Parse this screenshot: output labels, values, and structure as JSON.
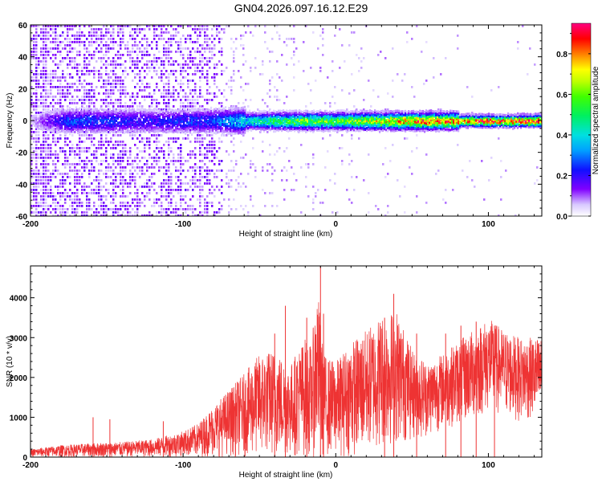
{
  "title": "GN04.2026.097.16.12.E29",
  "colors": {
    "snr_line": "#ee3333",
    "noise_light": "#d4bff5",
    "noise_dark": "#6a10e8"
  },
  "chart_data": [
    {
      "type": "heatmap",
      "name": "spectrogram",
      "xlabel": "Height of straight line (km)",
      "ylabel": "Frequency (Hz)",
      "xlim": [
        -200,
        135
      ],
      "ylim": [
        -60,
        60
      ],
      "x_ticks": [
        -200,
        -100,
        0,
        100
      ],
      "y_ticks": [
        60,
        40,
        20,
        0,
        -20,
        -40,
        -60
      ],
      "x_tick_labels": [
        "-200",
        "-100",
        "0",
        "100"
      ],
      "y_tick_labels": [
        "60",
        "40",
        "20",
        "0",
        "-20",
        "-40",
        "-60"
      ],
      "colorbar": {
        "label": "Normalized spectral amplitude",
        "range": [
          0,
          0.95
        ],
        "ticks": [
          0.0,
          0.2,
          0.4,
          0.6,
          0.8
        ],
        "tick_labels": [
          "0.0",
          "0.2",
          "0.4",
          "0.6",
          "0.8"
        ]
      },
      "signal_band": {
        "center_hz": 0,
        "description": "narrow band near 0 Hz strengthening with height",
        "amplitude_profile": [
          [
            -200,
            0.05
          ],
          [
            -175,
            0.25
          ],
          [
            -120,
            0.2
          ],
          [
            -80,
            0.25
          ],
          [
            -60,
            0.4
          ],
          [
            -40,
            0.5
          ],
          [
            -20,
            0.6
          ],
          [
            0,
            0.55
          ],
          [
            20,
            0.65
          ],
          [
            40,
            0.75
          ],
          [
            60,
            0.85
          ],
          [
            80,
            0.8
          ],
          [
            95,
            0.92
          ],
          [
            110,
            0.85
          ],
          [
            135,
            0.9
          ]
        ]
      }
    },
    {
      "type": "line",
      "name": "snr",
      "xlabel": "Height of straight line (km)",
      "ylabel": "SNR (10 * v/v)",
      "xlim": [
        -200,
        135
      ],
      "ylim": [
        0,
        4800
      ],
      "x_ticks": [
        -200,
        -100,
        0,
        100
      ],
      "y_ticks": [
        0,
        1000,
        2000,
        3000,
        4000
      ],
      "x_tick_labels": [
        "-200",
        "-100",
        "0",
        "100"
      ],
      "y_tick_labels": [
        "0",
        "1000",
        "2000",
        "3000",
        "4000"
      ],
      "envelope": {
        "x": [
          -200,
          -180,
          -160,
          -140,
          -120,
          -100,
          -90,
          -80,
          -70,
          -60,
          -50,
          -40,
          -30,
          -25,
          -20,
          -16,
          -12,
          -8,
          -5,
          0,
          10,
          20,
          30,
          40,
          50,
          60,
          70,
          80,
          90,
          100,
          110,
          120,
          135
        ],
        "upper": [
          200,
          300,
          350,
          380,
          450,
          650,
          850,
          1300,
          1700,
          2100,
          2600,
          2700,
          2300,
          2700,
          3000,
          2800,
          4300,
          2600,
          2500,
          2400,
          2900,
          3200,
          3600,
          3700,
          2700,
          2400,
          2600,
          2900,
          3200,
          3500,
          3200,
          3000,
          3000
        ],
        "lower": [
          0,
          0,
          0,
          0,
          0,
          0,
          0,
          0,
          0,
          0,
          0,
          0,
          0,
          0,
          0,
          0,
          0,
          0,
          0,
          0,
          0,
          100,
          200,
          300,
          400,
          500,
          700,
          800,
          900,
          1100,
          1000,
          900,
          900
        ]
      },
      "peaks": [
        [
          -159,
          1000
        ],
        [
          -148,
          950
        ],
        [
          -113,
          900
        ],
        [
          -40,
          3100
        ],
        [
          -33,
          3800
        ],
        [
          -19,
          3500
        ],
        [
          -10,
          4800
        ],
        [
          -8,
          3600
        ],
        [
          32,
          3500
        ],
        [
          38,
          4100
        ],
        [
          53,
          3100
        ],
        [
          72,
          3100
        ],
        [
          82,
          3300
        ],
        [
          92,
          3400
        ],
        [
          104,
          3300
        ]
      ]
    }
  ]
}
